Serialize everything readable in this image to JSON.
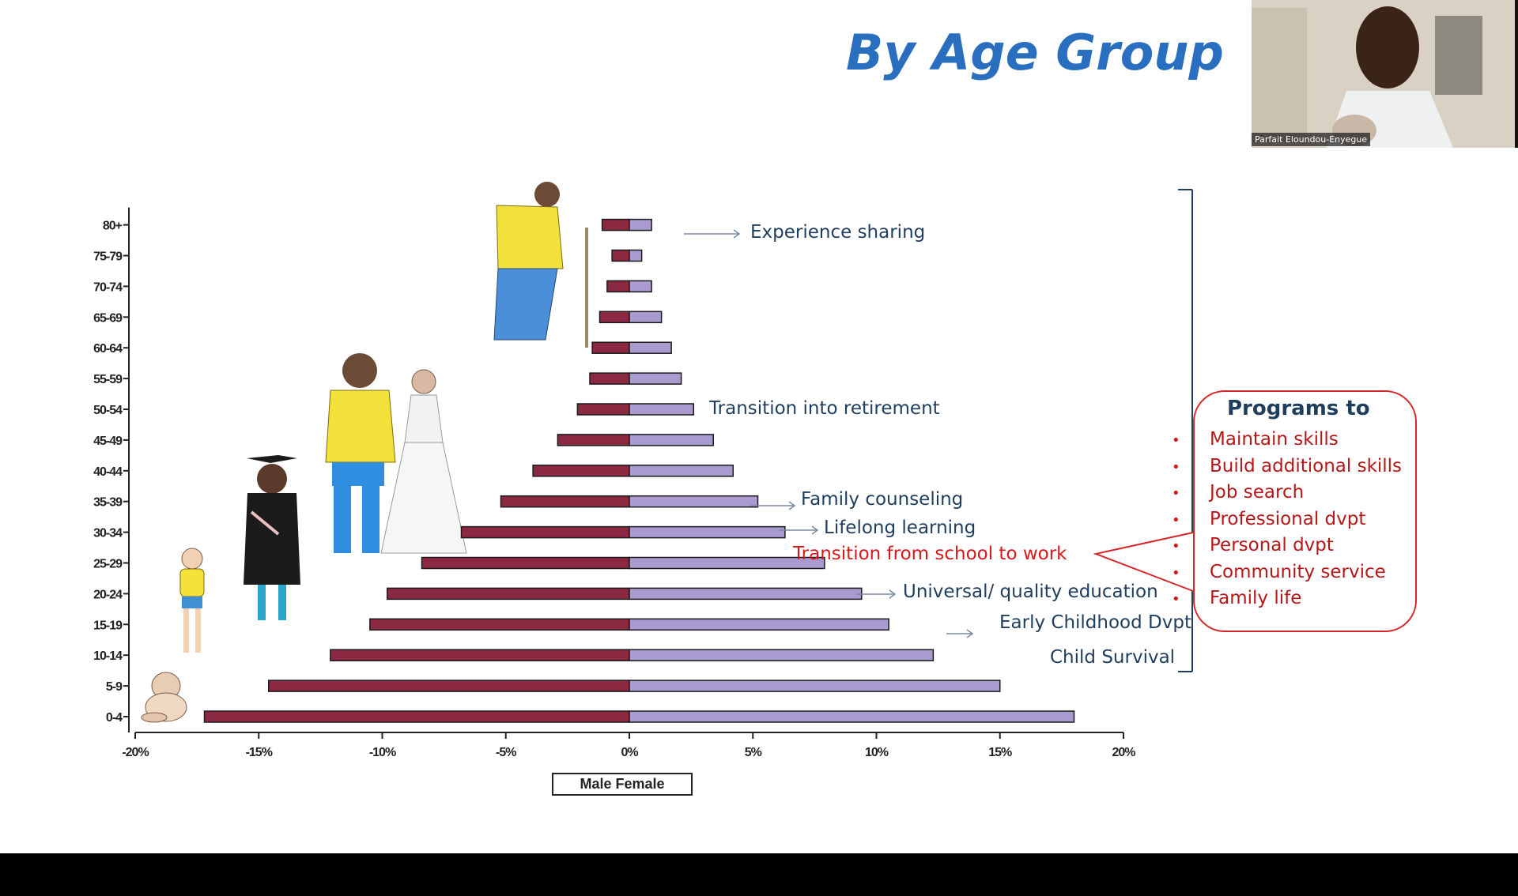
{
  "slide": {
    "title": "By Age Group"
  },
  "video": {
    "participant_name": "Parfait Eloundou-Enyegue"
  },
  "chart_data": {
    "type": "bar",
    "orientation": "horizontal",
    "subtype": "population-pyramid",
    "categories": [
      "0-4",
      "5-9",
      "10-14",
      "15-19",
      "20-24",
      "25-29",
      "30-34",
      "35-39",
      "40-44",
      "45-49",
      "50-54",
      "55-59",
      "60-64",
      "65-69",
      "70-74",
      "75-79",
      "80+"
    ],
    "series": [
      {
        "name": "Male",
        "values": [
          -17.2,
          -14.6,
          -12.1,
          -10.5,
          -9.8,
          -8.4,
          -6.8,
          -5.2,
          -3.9,
          -2.9,
          -2.1,
          -1.6,
          -1.5,
          -1.2,
          -0.9,
          -0.7,
          -1.1
        ],
        "color": "#8b2942"
      },
      {
        "name": "Female",
        "values": [
          18.0,
          15.0,
          12.3,
          10.5,
          9.4,
          7.9,
          6.3,
          5.2,
          4.2,
          3.4,
          2.6,
          2.1,
          1.7,
          1.3,
          0.9,
          0.5,
          0.9
        ],
        "color": "#a99bd0"
      }
    ],
    "xlim": [
      -20,
      20
    ],
    "xticks": [
      -20,
      -15,
      -10,
      -5,
      0,
      5,
      10,
      15,
      20
    ],
    "xtick_labels": [
      "-20%",
      "-15%",
      "-10%",
      "-5%",
      "0%",
      "5%",
      "10%",
      "15%",
      "20%"
    ],
    "legend": {
      "position": "bottom-center",
      "text": "Male Female"
    },
    "grid": false
  },
  "annotations": {
    "experience_sharing": "Experience sharing",
    "transition_retirement": "Transition into retirement",
    "family_counseling": "Family counseling",
    "lifelong_learning": "Lifelong learning",
    "school_to_work": "Transition from school to work",
    "universal_education": "Universal/ quality education",
    "early_childhood": "Early Childhood Dvpt",
    "child_survival": "Child Survival"
  },
  "programs": {
    "title": "Programs to",
    "items": [
      "Maintain skills",
      "Build additional skills",
      "Job search",
      "Professional dvpt",
      "Personal dvpt",
      "Community service",
      "Family life"
    ],
    "bullet": "•"
  },
  "colors": {
    "title": "#2a6fbf",
    "annotation_blue": "#1f3d5c",
    "annotation_red": "#d41a1a",
    "male_bar": "#8b2942",
    "female_bar": "#a99bd0",
    "programs_border": "#d42828"
  }
}
